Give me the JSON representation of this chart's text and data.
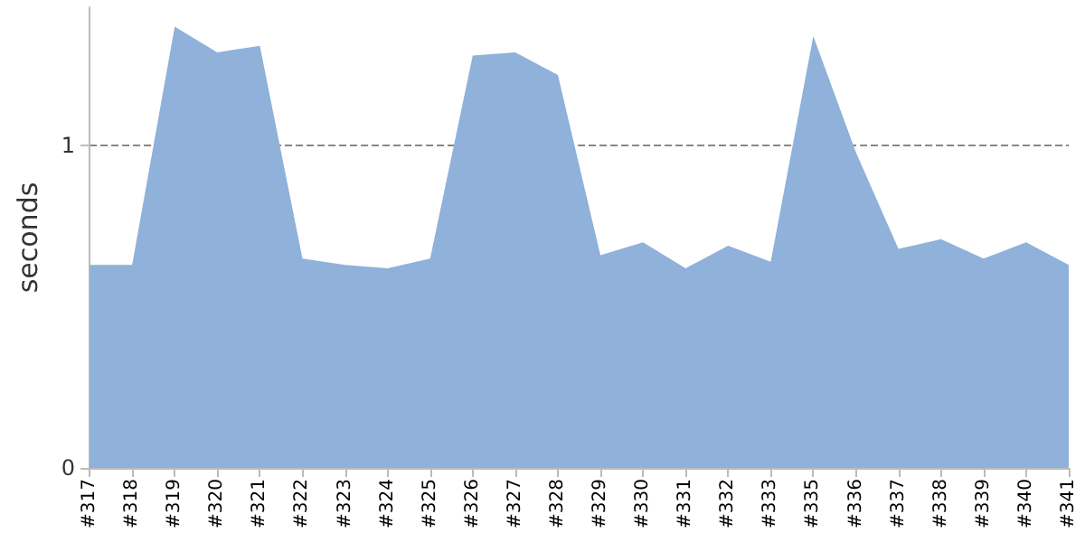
{
  "chart_data": {
    "type": "area",
    "ylabel": "seconds",
    "categories": [
      "#317",
      "#318",
      "#319",
      "#320",
      "#321",
      "#322",
      "#323",
      "#324",
      "#325",
      "#326",
      "#327",
      "#328",
      "#329",
      "#330",
      "#331",
      "#332",
      "#333",
      "#335",
      "#336",
      "#337",
      "#338",
      "#339",
      "#340",
      "#341"
    ],
    "series": [
      {
        "color": "#8fb1da",
        "values": [
          0.63,
          0.63,
          1.37,
          1.29,
          1.31,
          0.65,
          0.63,
          0.62,
          0.65,
          1.28,
          1.29,
          1.22,
          0.66,
          0.7,
          0.62,
          0.69,
          0.64,
          1.34,
          0.98,
          0.68,
          0.71,
          0.65,
          0.7,
          0.63
        ]
      }
    ],
    "ylim": [
      0,
      1.43
    ],
    "yticks": [
      0,
      1
    ],
    "grid": "y",
    "marker": "none"
  }
}
